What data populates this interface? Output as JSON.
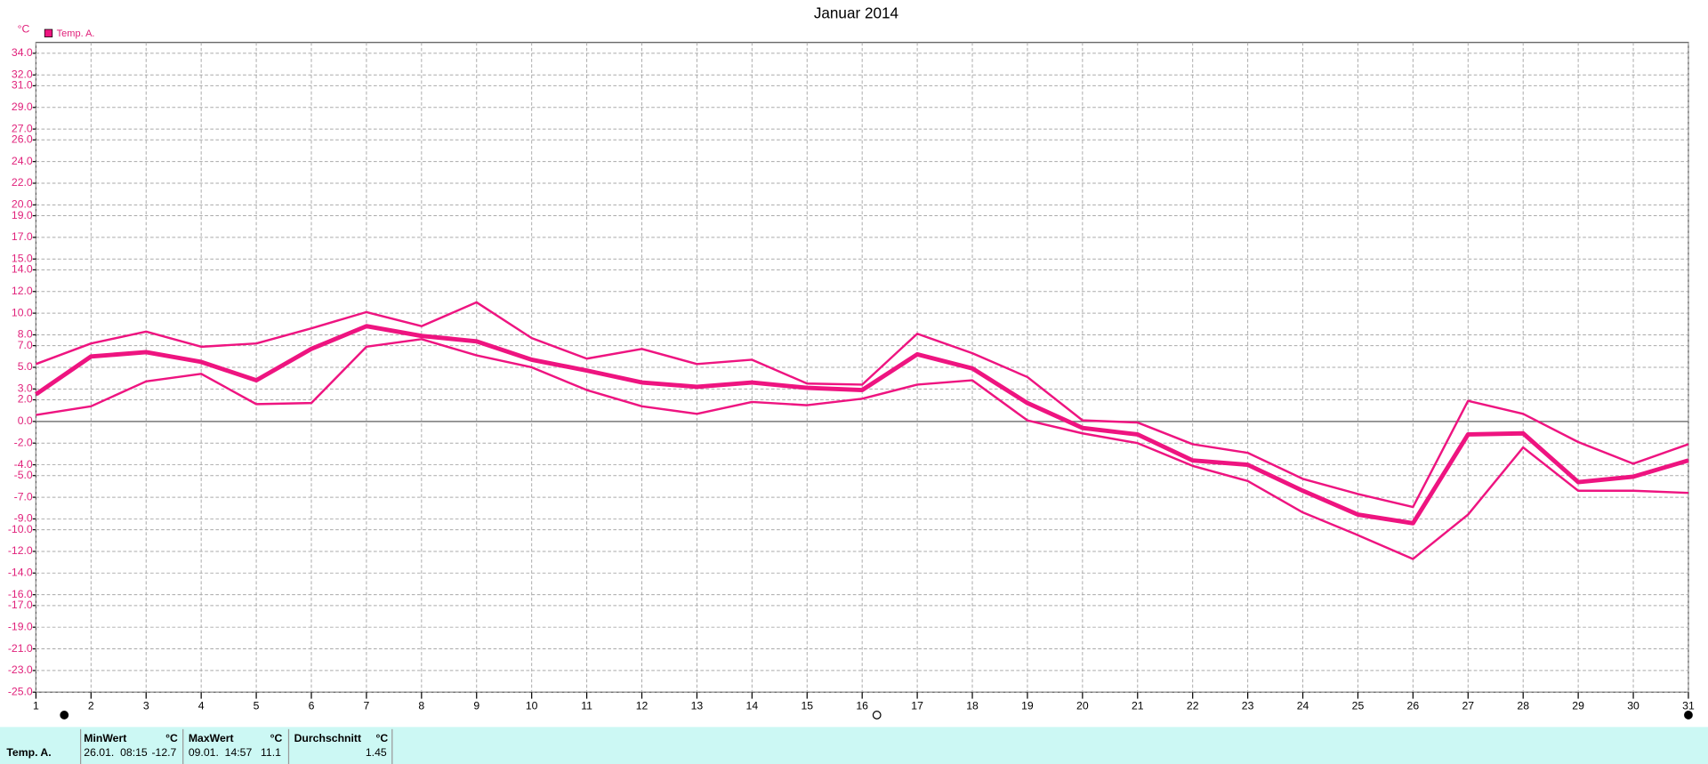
{
  "chart_data": {
    "type": "line",
    "title": "Januar 2014",
    "y_unit": "°C",
    "legend": "Temp. A.",
    "x": [
      1,
      2,
      3,
      4,
      5,
      6,
      7,
      8,
      9,
      10,
      11,
      12,
      13,
      14,
      15,
      16,
      17,
      18,
      19,
      20,
      21,
      22,
      23,
      24,
      25,
      26,
      27,
      28,
      29,
      30,
      31
    ],
    "xlim": [
      1,
      31
    ],
    "xticks": [
      1,
      2,
      3,
      4,
      5,
      6,
      7,
      8,
      9,
      10,
      11,
      12,
      13,
      14,
      15,
      16,
      17,
      18,
      19,
      20,
      21,
      22,
      23,
      24,
      25,
      26,
      27,
      28,
      29,
      30,
      31
    ],
    "series": [
      {
        "color": "#ee1480",
        "width": 2,
        "values": [
          5.3,
          7.2,
          8.3,
          6.9,
          7.2,
          8.6,
          10.1,
          8.8,
          11.0,
          7.7,
          5.8,
          6.7,
          5.3,
          5.7,
          3.5,
          3.4,
          8.1,
          6.3,
          4.1,
          0.1,
          -0.1,
          -2.1,
          -2.9,
          -5.3,
          -6.7,
          -7.9,
          1.9,
          0.7,
          -1.9,
          -3.9,
          -2.1
        ]
      },
      {
        "color": "#ee1480",
        "width": 4,
        "values": [
          2.5,
          6.0,
          6.4,
          5.5,
          3.8,
          6.7,
          8.8,
          7.9,
          7.4,
          5.7,
          4.7,
          3.6,
          3.2,
          3.6,
          3.1,
          2.9,
          6.2,
          4.9,
          1.7,
          -0.6,
          -1.2,
          -3.6,
          -4.0,
          -6.4,
          -8.6,
          -9.4,
          -1.2,
          -1.1,
          -5.6,
          -5.1,
          -3.6
        ]
      },
      {
        "color": "#ee1480",
        "width": 2,
        "values": [
          0.6,
          1.4,
          3.7,
          4.4,
          1.6,
          1.7,
          6.9,
          7.6,
          6.1,
          5.0,
          2.9,
          1.4,
          0.7,
          1.8,
          1.5,
          2.1,
          3.4,
          3.8,
          0.1,
          -1.1,
          -2.0,
          -4.1,
          -5.5,
          -8.4,
          -10.5,
          -12.7,
          -8.6,
          -2.4,
          -6.4,
          -6.4,
          -6.6
        ]
      }
    ],
    "ylim": [
      -25,
      35
    ],
    "yticks": [
      {
        "value": 34,
        "label": "34.0"
      },
      {
        "value": 32,
        "label": "32.0"
      },
      {
        "value": 31,
        "label": "31.0"
      },
      {
        "value": 29,
        "label": "29.0"
      },
      {
        "value": 27,
        "label": "27.0"
      },
      {
        "value": 26,
        "label": "26.0"
      },
      {
        "value": 24,
        "label": "24.0"
      },
      {
        "value": 22,
        "label": "22.0"
      },
      {
        "value": 20,
        "label": "20.0"
      },
      {
        "value": 19,
        "label": "19.0"
      },
      {
        "value": 17,
        "label": "17.0"
      },
      {
        "value": 15,
        "label": "15.0"
      },
      {
        "value": 14,
        "label": "14.0"
      },
      {
        "value": 12,
        "label": "12.0"
      },
      {
        "value": 10,
        "label": "10.0"
      },
      {
        "value": 8,
        "label": "8.0"
      },
      {
        "value": 7,
        "label": "7.0"
      },
      {
        "value": 5,
        "label": "5.0"
      },
      {
        "value": 3,
        "label": "3.0"
      },
      {
        "value": 2,
        "label": "2.0"
      },
      {
        "value": 0,
        "label": "0.0"
      },
      {
        "value": -2,
        "label": "-2.0"
      },
      {
        "value": -4,
        "label": "-4.0"
      },
      {
        "value": -5,
        "label": "-5.0"
      },
      {
        "value": -7,
        "label": "-7.0"
      },
      {
        "value": -9,
        "label": "-9.0"
      },
      {
        "value": -10,
        "label": "-10.0"
      },
      {
        "value": -12,
        "label": "-12.0"
      },
      {
        "value": -14,
        "label": "-14.0"
      },
      {
        "value": -16,
        "label": "-16.0"
      },
      {
        "value": -17,
        "label": "-17.0"
      },
      {
        "value": -19,
        "label": "-19.0"
      },
      {
        "value": -21,
        "label": "-21.0"
      },
      {
        "value": -23,
        "label": "-23.0"
      },
      {
        "value": -25,
        "label": "-25.0"
      }
    ],
    "grid": true
  },
  "stats": {
    "row_label": "Temp. A.",
    "columns": [
      {
        "header": "MinWert",
        "unit": "°C",
        "time": "26.01.  08:15",
        "value": -12.7
      },
      {
        "header": "MaxWert",
        "unit": "°C",
        "time": "09.01.  14:57",
        "value": 11.1
      },
      {
        "header": "Durchschnitt",
        "unit": "°C",
        "value": 1.45
      }
    ]
  }
}
